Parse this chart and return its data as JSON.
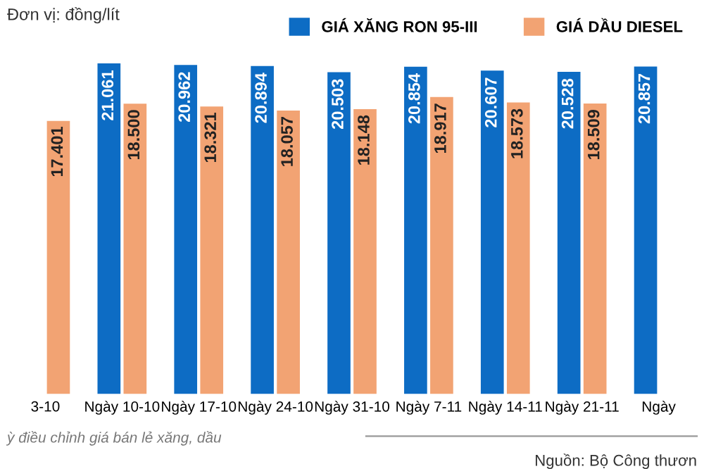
{
  "chart_data": {
    "type": "bar",
    "categories": [
      "3-10",
      "Ngày 10-10",
      "Ngày 17-10",
      "Ngày 24-10",
      "Ngày 31-10",
      "Ngày 7-11",
      "Ngày 14-11",
      "Ngày 21-11",
      "Ngày"
    ],
    "series": [
      {
        "name": "GIÁ XĂNG RON 95-III",
        "color": "#0d6cc4",
        "values": [
          null,
          21061,
          20962,
          20894,
          20503,
          20854,
          20607,
          20528,
          20857
        ],
        "value_labels": [
          null,
          "21.061",
          "20.962",
          "20.894",
          "20.503",
          "20.854",
          "20.607",
          "20.528",
          "20.857"
        ]
      },
      {
        "name": "GIÁ DẦU DIESEL",
        "color": "#f2a373",
        "values": [
          17401,
          18500,
          18321,
          18057,
          18148,
          18917,
          18573,
          18509,
          null
        ],
        "value_labels": [
          "17.401",
          "18.500",
          "18.321",
          "18.057",
          "18.148",
          "18.917",
          "18.573",
          "18.509",
          null
        ]
      }
    ],
    "tick_labels": "x",
    "legend": "top",
    "annotations": [
      "Đơn vị: đồng/lít",
      "ỳ điều chỉnh giá bán lẻ xăng, dầu",
      "Nguồn: Bộ Công thươn"
    ]
  }
}
